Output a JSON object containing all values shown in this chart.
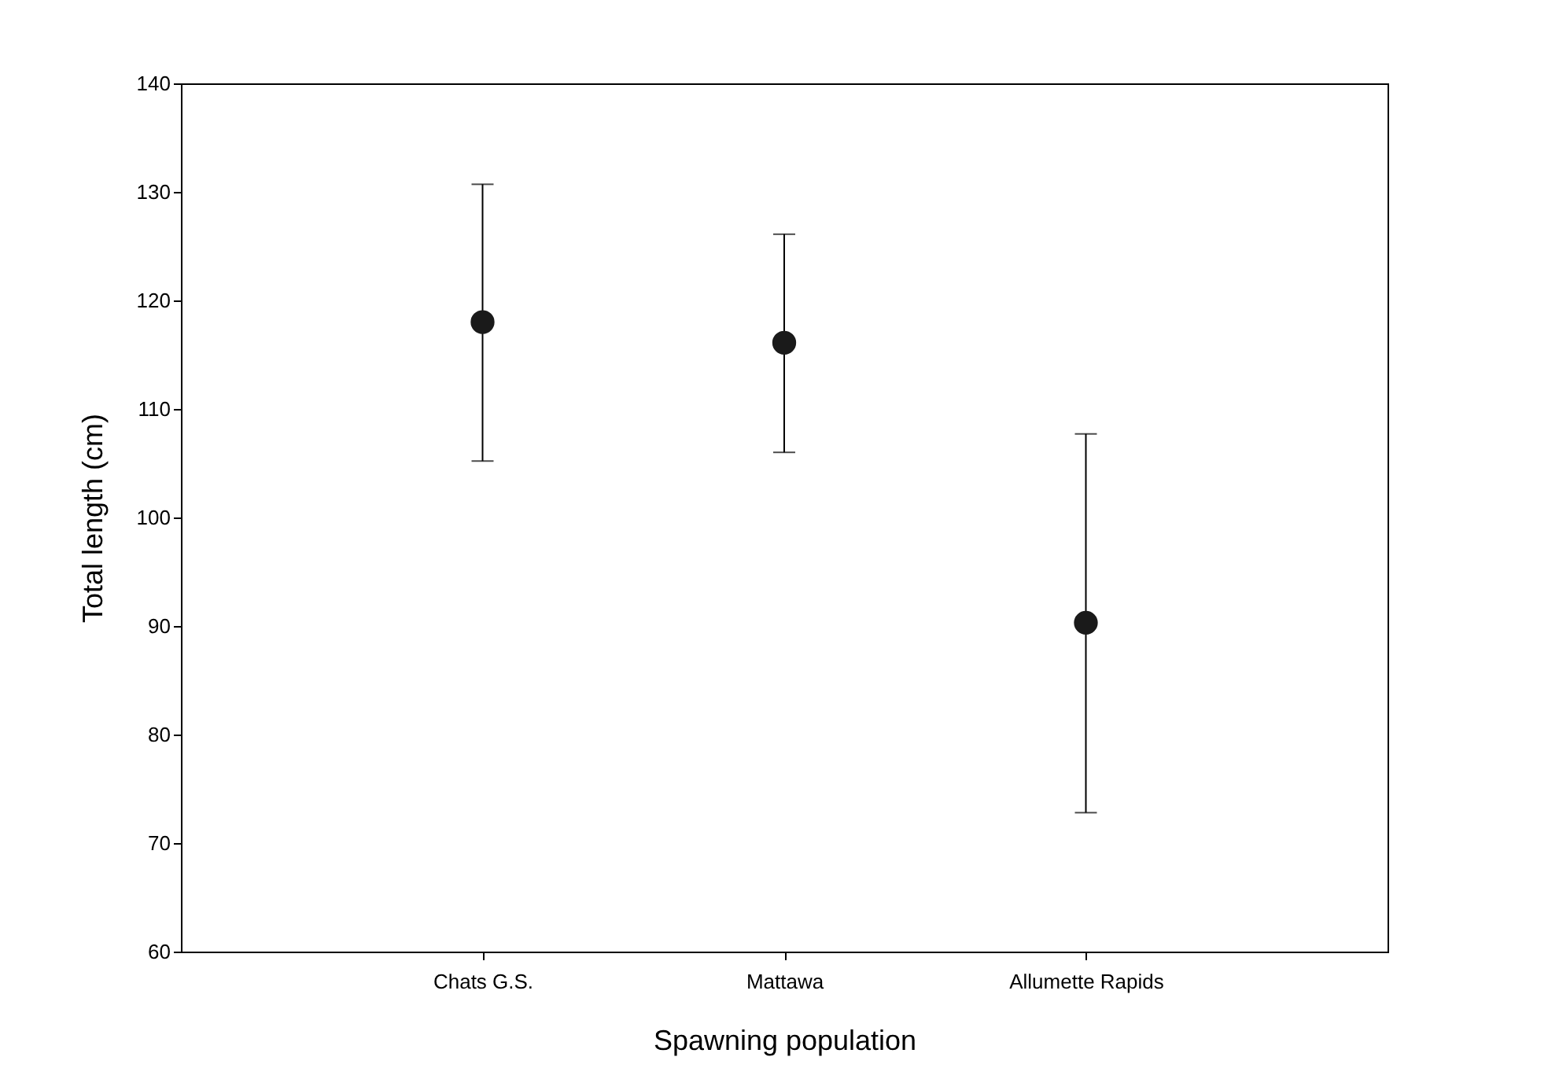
{
  "chart_data": {
    "type": "scatter",
    "xlabel": "Spawning population",
    "ylabel": "Total length (cm)",
    "categories": [
      "Chats G.S.",
      "Mattawa",
      "Allumette Rapids"
    ],
    "series": [
      {
        "color": "#1a1a1a",
        "values": [
          118.0,
          116.1,
          90.3
        ],
        "errors": [
          [
            105.2,
            130.7
          ],
          [
            106.0,
            126.1
          ],
          [
            72.8,
            107.7
          ]
        ]
      }
    ],
    "ylim": [
      60,
      140
    ],
    "yticks": [
      60,
      70,
      80,
      90,
      100,
      110,
      120,
      130,
      140
    ],
    "grid": false,
    "legend": false,
    "marker": "circle"
  }
}
